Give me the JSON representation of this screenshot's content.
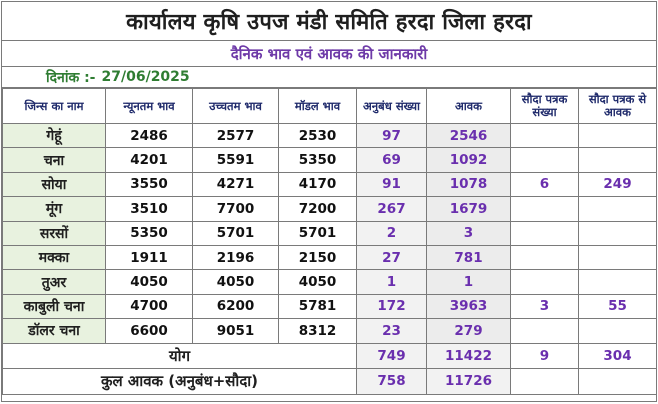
{
  "title": "कार्यालय कृषि उपज मंडी समिति हरदा जिला हरदा",
  "subtitle": "दैनिक भाव एवं आवक की जानकारी",
  "date_label": "दिनांक :-",
  "date_value": "27/06/2025",
  "headers": {
    "crop": "जिन्स का नाम",
    "min": "न्यूनतम भाव",
    "max": "उच्चतम भाव",
    "model": "मॉडल भाव",
    "anubandh": "अनुबंध संख्या",
    "aavak": "आवक",
    "sauda_count": "सौदा पत्रक संख्या",
    "sauda_aavak": "सौदा पत्रक से आवक"
  },
  "rows": [
    {
      "crop": "गेहूं",
      "min": "2486",
      "max": "2577",
      "model": "2530",
      "anubandh": "97",
      "aavak": "2546",
      "sauda_count": "",
      "sauda_aavak": ""
    },
    {
      "crop": "चना",
      "min": "4201",
      "max": "5591",
      "model": "5350",
      "anubandh": "69",
      "aavak": "1092",
      "sauda_count": "",
      "sauda_aavak": ""
    },
    {
      "crop": "सोया",
      "min": "3550",
      "max": "4271",
      "model": "4170",
      "anubandh": "91",
      "aavak": "1078",
      "sauda_count": "6",
      "sauda_aavak": "249"
    },
    {
      "crop": "मूंग",
      "min": "3510",
      "max": "7700",
      "model": "7200",
      "anubandh": "267",
      "aavak": "1679",
      "sauda_count": "",
      "sauda_aavak": ""
    },
    {
      "crop": "सरसों",
      "min": "5350",
      "max": "5701",
      "model": "5701",
      "anubandh": "2",
      "aavak": "3",
      "sauda_count": "",
      "sauda_aavak": ""
    },
    {
      "crop": "मक्का",
      "min": "1911",
      "max": "2196",
      "model": "2150",
      "anubandh": "27",
      "aavak": "781",
      "sauda_count": "",
      "sauda_aavak": ""
    },
    {
      "crop": "तुअर",
      "min": "4050",
      "max": "4050",
      "model": "4050",
      "anubandh": "1",
      "aavak": "1",
      "sauda_count": "",
      "sauda_aavak": ""
    },
    {
      "crop": "काबुली चना",
      "min": "4700",
      "max": "6200",
      "model": "5781",
      "anubandh": "172",
      "aavak": "3963",
      "sauda_count": "3",
      "sauda_aavak": "55"
    },
    {
      "crop": "डॉलर चना",
      "min": "6600",
      "max": "9051",
      "model": "8312",
      "anubandh": "23",
      "aavak": "279",
      "sauda_count": "",
      "sauda_aavak": ""
    }
  ],
  "total": {
    "label": "योग",
    "anubandh": "749",
    "aavak": "11422",
    "sauda_count": "9",
    "sauda_aavak": "304"
  },
  "grand_total": {
    "label": "कुल आवक (अनुबंध+सौदा)",
    "anubandh": "758",
    "aavak": "11726"
  }
}
